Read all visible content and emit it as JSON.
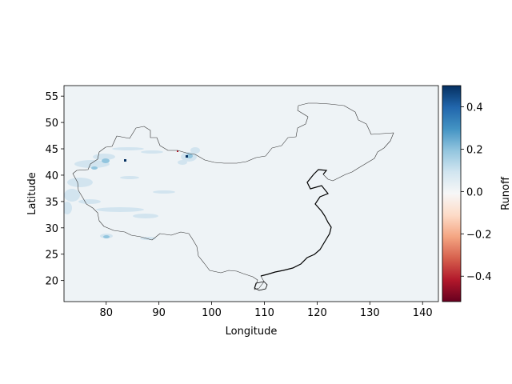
{
  "map": {
    "xlabel": "Longitude",
    "ylabel": "Latitude",
    "xlim": [
      72,
      143
    ],
    "ylim": [
      16,
      57
    ],
    "xticks": [
      "80",
      "90",
      "100",
      "110",
      "120",
      "130",
      "140"
    ],
    "yticks": [
      "20",
      "25",
      "30",
      "35",
      "40",
      "45",
      "50",
      "55"
    ],
    "background_color": "#eef3f6",
    "region": "China",
    "colormap": "RdBu"
  },
  "colorbar": {
    "label": "Runoff",
    "range": [
      -0.52,
      0.5
    ],
    "ticks": [
      "0.4",
      "0.2",
      "0.0",
      "−0.2",
      "−0.4"
    ],
    "colors": [
      "#053061",
      "#2166ac",
      "#4393c3",
      "#92c5de",
      "#d1e5f0",
      "#f7f7f7",
      "#fddbc7",
      "#f4a582",
      "#d6604d",
      "#b2182b",
      "#67001f"
    ]
  }
}
